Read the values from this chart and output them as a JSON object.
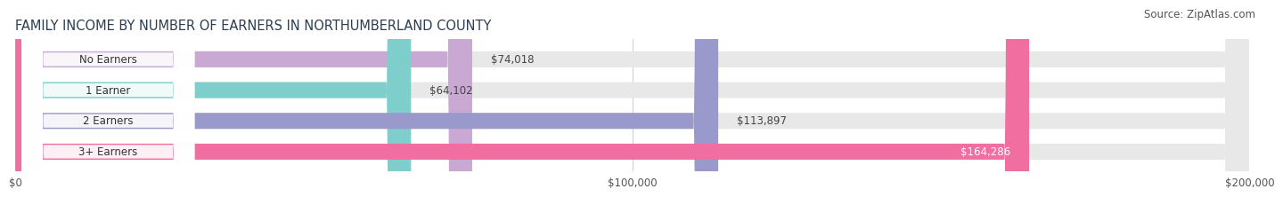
{
  "title": "FAMILY INCOME BY NUMBER OF EARNERS IN NORTHUMBERLAND COUNTY",
  "source": "Source: ZipAtlas.com",
  "categories": [
    "No Earners",
    "1 Earner",
    "2 Earners",
    "3+ Earners"
  ],
  "values": [
    74018,
    64102,
    113897,
    164286
  ],
  "bar_colors": [
    "#c9a8d4",
    "#7ecfcc",
    "#9999cc",
    "#f06fa0"
  ],
  "value_label_inside": [
    false,
    false,
    false,
    true
  ],
  "bar_bg_color": "#e8e8e8",
  "background_color": "#ffffff",
  "xlim": [
    0,
    200000
  ],
  "xticks": [
    0,
    100000,
    200000
  ],
  "xtick_labels": [
    "$0",
    "$100,000",
    "$200,000"
  ],
  "title_fontsize": 10.5,
  "source_fontsize": 8.5,
  "label_fontsize": 8.5,
  "tick_fontsize": 8.5,
  "bar_height": 0.52,
  "cat_label_fontsize": 8.5
}
